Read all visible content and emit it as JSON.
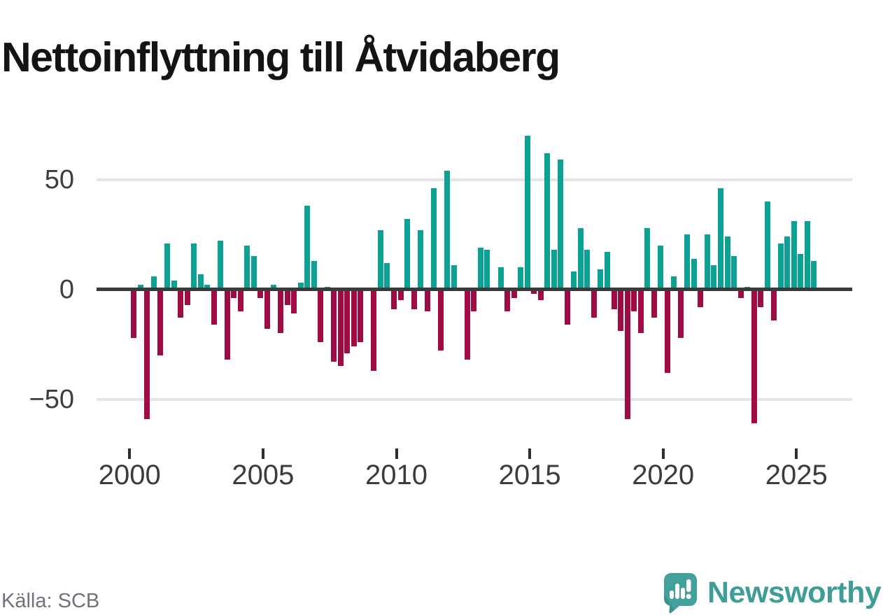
{
  "title": "Nettoinflyttning till Åtvidaberg",
  "source": "Källa: SCB",
  "logo": {
    "text": "Newsworthy",
    "icon": "newsworthy-speech-bubble-bar-chart-icon",
    "color": "#3f9d97"
  },
  "colors": {
    "positive_bar": "#0ba294",
    "negative_bar": "#9e0b45",
    "zero_line": "#3a3a3a",
    "gridline": "#e4e4e4",
    "axis_text": "#3d3d3d",
    "source_text": "#71717a"
  },
  "chart_data": {
    "type": "bar",
    "title": "Nettoinflyttning till Åtvidaberg",
    "xlabel": "",
    "ylabel": "",
    "ylim": [
      -72,
      73
    ],
    "grid": "horizontal",
    "legend": "none",
    "yticks": [
      {
        "label": "50",
        "value": 50
      },
      {
        "label": "0",
        "value": 0
      },
      {
        "label": "−50",
        "value": -50
      }
    ],
    "xticks": [
      {
        "label": "2000",
        "year": 2000
      },
      {
        "label": "2005",
        "year": 2005
      },
      {
        "label": "2010",
        "year": 2010
      },
      {
        "label": "2015",
        "year": 2015
      },
      {
        "label": "2020",
        "year": 2020
      },
      {
        "label": "2025",
        "year": 2025
      }
    ],
    "x": [
      "2000Q1",
      "2000Q2",
      "2000Q3",
      "2000Q4",
      "2001Q1",
      "2001Q2",
      "2001Q3",
      "2001Q4",
      "2002Q1",
      "2002Q2",
      "2002Q3",
      "2002Q4",
      "2003Q1",
      "2003Q2",
      "2003Q3",
      "2003Q4",
      "2004Q1",
      "2004Q2",
      "2004Q3",
      "2004Q4",
      "2005Q1",
      "2005Q2",
      "2005Q3",
      "2005Q4",
      "2006Q1",
      "2006Q2",
      "2006Q3",
      "2006Q4",
      "2007Q1",
      "2007Q2",
      "2007Q3",
      "2007Q4",
      "2008Q1",
      "2008Q2",
      "2008Q3",
      "2008Q4",
      "2009Q1",
      "2009Q2",
      "2009Q3",
      "2009Q4",
      "2010Q1",
      "2010Q2",
      "2010Q3",
      "2010Q4",
      "2011Q1",
      "2011Q2",
      "2011Q3",
      "2011Q4",
      "2012Q1",
      "2012Q2",
      "2012Q3",
      "2012Q4",
      "2013Q1",
      "2013Q2",
      "2013Q3",
      "2013Q4",
      "2014Q1",
      "2014Q2",
      "2014Q3",
      "2014Q4",
      "2015Q1",
      "2015Q2",
      "2015Q3",
      "2015Q4",
      "2016Q1",
      "2016Q2",
      "2016Q3",
      "2016Q4",
      "2017Q1",
      "2017Q2",
      "2017Q3",
      "2017Q4",
      "2018Q1",
      "2018Q2",
      "2018Q3",
      "2018Q4",
      "2019Q1",
      "2019Q2",
      "2019Q3",
      "2019Q4",
      "2020Q1",
      "2020Q2",
      "2020Q3",
      "2020Q4",
      "2021Q1",
      "2021Q2",
      "2021Q3",
      "2021Q4",
      "2022Q1",
      "2022Q2",
      "2022Q3",
      "2022Q4",
      "2023Q1",
      "2023Q2",
      "2023Q3",
      "2023Q4",
      "2024Q1",
      "2024Q2",
      "2024Q3",
      "2024Q4",
      "2025Q1",
      "2025Q2",
      "2025Q3"
    ],
    "values": [
      -22,
      2,
      -59,
      6,
      -30,
      21,
      4,
      -13,
      -7,
      21,
      7,
      2,
      -16,
      22,
      -32,
      -4,
      -10,
      20,
      15,
      -4,
      -18,
      2,
      -20,
      -7,
      -11,
      3,
      38,
      13,
      -24,
      1,
      -33,
      -35,
      -29,
      -26,
      -24,
      0,
      -37,
      27,
      12,
      -9,
      -5,
      32,
      -9,
      27,
      -10,
      46,
      -28,
      54,
      11,
      0,
      -32,
      -10,
      19,
      18,
      0,
      10,
      -10,
      -4,
      10,
      70,
      -2,
      -5,
      62,
      18,
      59,
      -16,
      8,
      28,
      18,
      -13,
      9,
      17,
      -9,
      -19,
      -59,
      -10,
      -20,
      28,
      -13,
      20,
      -38,
      6,
      -22,
      25,
      14,
      -8,
      25,
      11,
      46,
      24,
      15,
      -4,
      1,
      -61,
      -8,
      40,
      -14,
      21,
      24,
      31,
      16,
      31,
      13
    ]
  }
}
